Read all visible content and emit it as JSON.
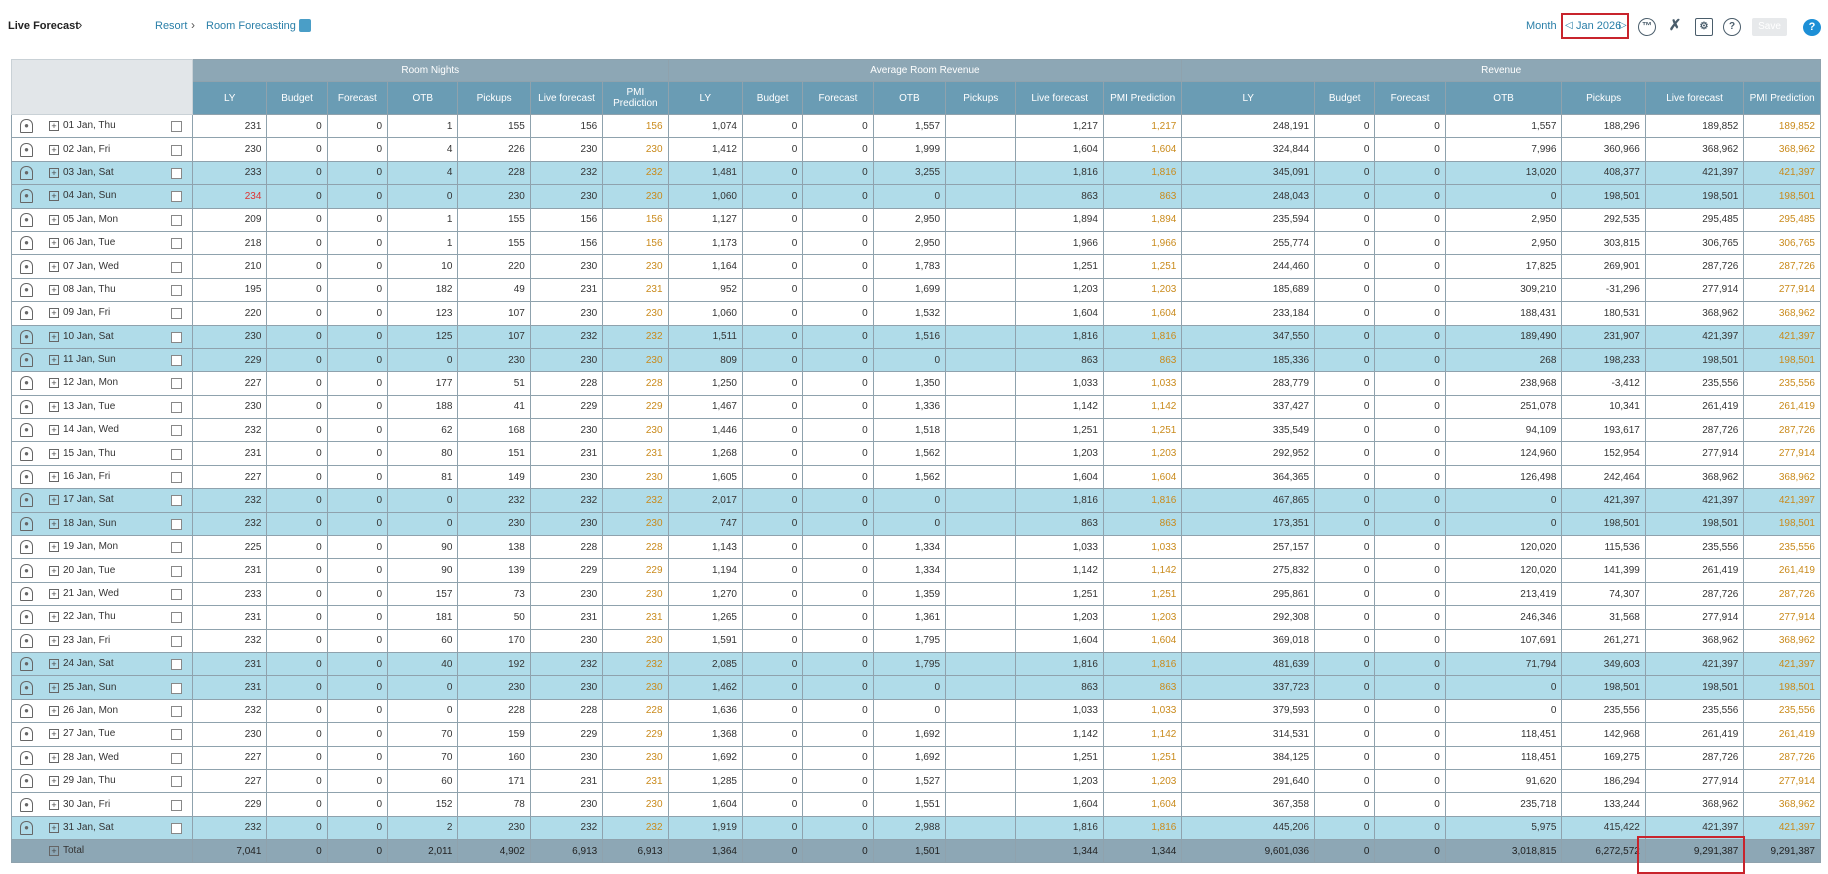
{
  "topbar": {
    "title": "Live Forecast",
    "breadcrumb": [
      "Resort",
      "Room Forecasting"
    ],
    "month_label": "Month",
    "month_value": "Jan 2026",
    "save_label": "Save"
  },
  "groups": [
    "Room Nights",
    "Average Room Revenue",
    "Revenue"
  ],
  "rn_cols": [
    "LY",
    "Budget",
    "Forecast",
    "OTB",
    "Pickups",
    "Live forecast",
    "PMI Prediction"
  ],
  "arr_cols": [
    "LY",
    "Budget",
    "Forecast",
    "OTB",
    "Pickups",
    "Live forecast",
    "PMI Prediction"
  ],
  "rev_cols": [
    "LY",
    "Budget",
    "Forecast",
    "OTB",
    "Pickups",
    "Live forecast",
    "PMI Prediction"
  ],
  "rows": [
    {
      "date": "01 Jan, Thu",
      "weekend": false,
      "rn": [
        "231",
        "0",
        "0",
        "1",
        "155",
        "156",
        "156"
      ],
      "arr": [
        "1,074",
        "0",
        "0",
        "1,557",
        "",
        "1,217",
        "1,217"
      ],
      "rev": [
        "248,191",
        "0",
        "0",
        "1,557",
        "188,296",
        "189,852",
        "189,852"
      ]
    },
    {
      "date": "02 Jan, Fri",
      "weekend": false,
      "rn": [
        "230",
        "0",
        "0",
        "4",
        "226",
        "230",
        "230"
      ],
      "arr": [
        "1,412",
        "0",
        "0",
        "1,999",
        "",
        "1,604",
        "1,604"
      ],
      "rev": [
        "324,844",
        "0",
        "0",
        "7,996",
        "360,966",
        "368,962",
        "368,962"
      ]
    },
    {
      "date": "03 Jan, Sat",
      "weekend": true,
      "rn": [
        "233",
        "0",
        "0",
        "4",
        "228",
        "232",
        "232"
      ],
      "arr": [
        "1,481",
        "0",
        "0",
        "3,255",
        "",
        "1,816",
        "1,816"
      ],
      "rev": [
        "345,091",
        "0",
        "0",
        "13,020",
        "408,377",
        "421,397",
        "421,397"
      ]
    },
    {
      "date": "04 Jan, Sun",
      "weekend": true,
      "red": true,
      "rn": [
        "234",
        "0",
        "0",
        "0",
        "230",
        "230",
        "230"
      ],
      "arr": [
        "1,060",
        "0",
        "0",
        "0",
        "",
        "863",
        "863"
      ],
      "rev": [
        "248,043",
        "0",
        "0",
        "0",
        "198,501",
        "198,501",
        "198,501"
      ]
    },
    {
      "date": "05 Jan, Mon",
      "weekend": false,
      "rn": [
        "209",
        "0",
        "0",
        "1",
        "155",
        "156",
        "156"
      ],
      "arr": [
        "1,127",
        "0",
        "0",
        "2,950",
        "",
        "1,894",
        "1,894"
      ],
      "rev": [
        "235,594",
        "0",
        "0",
        "2,950",
        "292,535",
        "295,485",
        "295,485"
      ]
    },
    {
      "date": "06 Jan, Tue",
      "weekend": false,
      "rn": [
        "218",
        "0",
        "0",
        "1",
        "155",
        "156",
        "156"
      ],
      "arr": [
        "1,173",
        "0",
        "0",
        "2,950",
        "",
        "1,966",
        "1,966"
      ],
      "rev": [
        "255,774",
        "0",
        "0",
        "2,950",
        "303,815",
        "306,765",
        "306,765"
      ]
    },
    {
      "date": "07 Jan, Wed",
      "weekend": false,
      "rn": [
        "210",
        "0",
        "0",
        "10",
        "220",
        "230",
        "230"
      ],
      "arr": [
        "1,164",
        "0",
        "0",
        "1,783",
        "",
        "1,251",
        "1,251"
      ],
      "rev": [
        "244,460",
        "0",
        "0",
        "17,825",
        "269,901",
        "287,726",
        "287,726"
      ]
    },
    {
      "date": "08 Jan, Thu",
      "weekend": false,
      "rn": [
        "195",
        "0",
        "0",
        "182",
        "49",
        "231",
        "231"
      ],
      "arr": [
        "952",
        "0",
        "0",
        "1,699",
        "",
        "1,203",
        "1,203"
      ],
      "rev": [
        "185,689",
        "0",
        "0",
        "309,210",
        "-31,296",
        "277,914",
        "277,914"
      ]
    },
    {
      "date": "09 Jan, Fri",
      "weekend": false,
      "rn": [
        "220",
        "0",
        "0",
        "123",
        "107",
        "230",
        "230"
      ],
      "arr": [
        "1,060",
        "0",
        "0",
        "1,532",
        "",
        "1,604",
        "1,604"
      ],
      "rev": [
        "233,184",
        "0",
        "0",
        "188,431",
        "180,531",
        "368,962",
        "368,962"
      ]
    },
    {
      "date": "10 Jan, Sat",
      "weekend": true,
      "rn": [
        "230",
        "0",
        "0",
        "125",
        "107",
        "232",
        "232"
      ],
      "arr": [
        "1,511",
        "0",
        "0",
        "1,516",
        "",
        "1,816",
        "1,816"
      ],
      "rev": [
        "347,550",
        "0",
        "0",
        "189,490",
        "231,907",
        "421,397",
        "421,397"
      ]
    },
    {
      "date": "11 Jan, Sun",
      "weekend": true,
      "rn": [
        "229",
        "0",
        "0",
        "0",
        "230",
        "230",
        "230"
      ],
      "arr": [
        "809",
        "0",
        "0",
        "0",
        "",
        "863",
        "863"
      ],
      "rev": [
        "185,336",
        "0",
        "0",
        "268",
        "198,233",
        "198,501",
        "198,501"
      ]
    },
    {
      "date": "12 Jan, Mon",
      "weekend": false,
      "rn": [
        "227",
        "0",
        "0",
        "177",
        "51",
        "228",
        "228"
      ],
      "arr": [
        "1,250",
        "0",
        "0",
        "1,350",
        "",
        "1,033",
        "1,033"
      ],
      "rev": [
        "283,779",
        "0",
        "0",
        "238,968",
        "-3,412",
        "235,556",
        "235,556"
      ]
    },
    {
      "date": "13 Jan, Tue",
      "weekend": false,
      "rn": [
        "230",
        "0",
        "0",
        "188",
        "41",
        "229",
        "229"
      ],
      "arr": [
        "1,467",
        "0",
        "0",
        "1,336",
        "",
        "1,142",
        "1,142"
      ],
      "rev": [
        "337,427",
        "0",
        "0",
        "251,078",
        "10,341",
        "261,419",
        "261,419"
      ]
    },
    {
      "date": "14 Jan, Wed",
      "weekend": false,
      "rn": [
        "232",
        "0",
        "0",
        "62",
        "168",
        "230",
        "230"
      ],
      "arr": [
        "1,446",
        "0",
        "0",
        "1,518",
        "",
        "1,251",
        "1,251"
      ],
      "rev": [
        "335,549",
        "0",
        "0",
        "94,109",
        "193,617",
        "287,726",
        "287,726"
      ]
    },
    {
      "date": "15 Jan, Thu",
      "weekend": false,
      "rn": [
        "231",
        "0",
        "0",
        "80",
        "151",
        "231",
        "231"
      ],
      "arr": [
        "1,268",
        "0",
        "0",
        "1,562",
        "",
        "1,203",
        "1,203"
      ],
      "rev": [
        "292,952",
        "0",
        "0",
        "124,960",
        "152,954",
        "277,914",
        "277,914"
      ]
    },
    {
      "date": "16 Jan, Fri",
      "weekend": false,
      "rn": [
        "227",
        "0",
        "0",
        "81",
        "149",
        "230",
        "230"
      ],
      "arr": [
        "1,605",
        "0",
        "0",
        "1,562",
        "",
        "1,604",
        "1,604"
      ],
      "rev": [
        "364,365",
        "0",
        "0",
        "126,498",
        "242,464",
        "368,962",
        "368,962"
      ]
    },
    {
      "date": "17 Jan, Sat",
      "weekend": true,
      "rn": [
        "232",
        "0",
        "0",
        "0",
        "232",
        "232",
        "232"
      ],
      "arr": [
        "2,017",
        "0",
        "0",
        "0",
        "",
        "1,816",
        "1,816"
      ],
      "rev": [
        "467,865",
        "0",
        "0",
        "0",
        "421,397",
        "421,397",
        "421,397"
      ]
    },
    {
      "date": "18 Jan, Sun",
      "weekend": true,
      "rn": [
        "232",
        "0",
        "0",
        "0",
        "230",
        "230",
        "230"
      ],
      "arr": [
        "747",
        "0",
        "0",
        "0",
        "",
        "863",
        "863"
      ],
      "rev": [
        "173,351",
        "0",
        "0",
        "0",
        "198,501",
        "198,501",
        "198,501"
      ]
    },
    {
      "date": "19 Jan, Mon",
      "weekend": false,
      "rn": [
        "225",
        "0",
        "0",
        "90",
        "138",
        "228",
        "228"
      ],
      "arr": [
        "1,143",
        "0",
        "0",
        "1,334",
        "",
        "1,033",
        "1,033"
      ],
      "rev": [
        "257,157",
        "0",
        "0",
        "120,020",
        "115,536",
        "235,556",
        "235,556"
      ]
    },
    {
      "date": "20 Jan, Tue",
      "weekend": false,
      "rn": [
        "231",
        "0",
        "0",
        "90",
        "139",
        "229",
        "229"
      ],
      "arr": [
        "1,194",
        "0",
        "0",
        "1,334",
        "",
        "1,142",
        "1,142"
      ],
      "rev": [
        "275,832",
        "0",
        "0",
        "120,020",
        "141,399",
        "261,419",
        "261,419"
      ]
    },
    {
      "date": "21 Jan, Wed",
      "weekend": false,
      "rn": [
        "233",
        "0",
        "0",
        "157",
        "73",
        "230",
        "230"
      ],
      "arr": [
        "1,270",
        "0",
        "0",
        "1,359",
        "",
        "1,251",
        "1,251"
      ],
      "rev": [
        "295,861",
        "0",
        "0",
        "213,419",
        "74,307",
        "287,726",
        "287,726"
      ]
    },
    {
      "date": "22 Jan, Thu",
      "weekend": false,
      "rn": [
        "231",
        "0",
        "0",
        "181",
        "50",
        "231",
        "231"
      ],
      "arr": [
        "1,265",
        "0",
        "0",
        "1,361",
        "",
        "1,203",
        "1,203"
      ],
      "rev": [
        "292,308",
        "0",
        "0",
        "246,346",
        "31,568",
        "277,914",
        "277,914"
      ]
    },
    {
      "date": "23 Jan, Fri",
      "weekend": false,
      "rn": [
        "232",
        "0",
        "0",
        "60",
        "170",
        "230",
        "230"
      ],
      "arr": [
        "1,591",
        "0",
        "0",
        "1,795",
        "",
        "1,604",
        "1,604"
      ],
      "rev": [
        "369,018",
        "0",
        "0",
        "107,691",
        "261,271",
        "368,962",
        "368,962"
      ]
    },
    {
      "date": "24 Jan, Sat",
      "weekend": true,
      "rn": [
        "231",
        "0",
        "0",
        "40",
        "192",
        "232",
        "232"
      ],
      "arr": [
        "2,085",
        "0",
        "0",
        "1,795",
        "",
        "1,816",
        "1,816"
      ],
      "rev": [
        "481,639",
        "0",
        "0",
        "71,794",
        "349,603",
        "421,397",
        "421,397"
      ]
    },
    {
      "date": "25 Jan, Sun",
      "weekend": true,
      "rn": [
        "231",
        "0",
        "0",
        "0",
        "230",
        "230",
        "230"
      ],
      "arr": [
        "1,462",
        "0",
        "0",
        "0",
        "",
        "863",
        "863"
      ],
      "rev": [
        "337,723",
        "0",
        "0",
        "0",
        "198,501",
        "198,501",
        "198,501"
      ]
    },
    {
      "date": "26 Jan, Mon",
      "weekend": false,
      "rn": [
        "232",
        "0",
        "0",
        "0",
        "228",
        "228",
        "228"
      ],
      "arr": [
        "1,636",
        "0",
        "0",
        "0",
        "",
        "1,033",
        "1,033"
      ],
      "rev": [
        "379,593",
        "0",
        "0",
        "0",
        "235,556",
        "235,556",
        "235,556"
      ]
    },
    {
      "date": "27 Jan, Tue",
      "weekend": false,
      "rn": [
        "230",
        "0",
        "0",
        "70",
        "159",
        "229",
        "229"
      ],
      "arr": [
        "1,368",
        "0",
        "0",
        "1,692",
        "",
        "1,142",
        "1,142"
      ],
      "rev": [
        "314,531",
        "0",
        "0",
        "118,451",
        "142,968",
        "261,419",
        "261,419"
      ]
    },
    {
      "date": "28 Jan, Wed",
      "weekend": false,
      "rn": [
        "227",
        "0",
        "0",
        "70",
        "160",
        "230",
        "230"
      ],
      "arr": [
        "1,692",
        "0",
        "0",
        "1,692",
        "",
        "1,251",
        "1,251"
      ],
      "rev": [
        "384,125",
        "0",
        "0",
        "118,451",
        "169,275",
        "287,726",
        "287,726"
      ]
    },
    {
      "date": "29 Jan, Thu",
      "weekend": false,
      "rn": [
        "227",
        "0",
        "0",
        "60",
        "171",
        "231",
        "231"
      ],
      "arr": [
        "1,285",
        "0",
        "0",
        "1,527",
        "",
        "1,203",
        "1,203"
      ],
      "rev": [
        "291,640",
        "0",
        "0",
        "91,620",
        "186,294",
        "277,914",
        "277,914"
      ]
    },
    {
      "date": "30 Jan, Fri",
      "weekend": false,
      "rn": [
        "229",
        "0",
        "0",
        "152",
        "78",
        "230",
        "230"
      ],
      "arr": [
        "1,604",
        "0",
        "0",
        "1,551",
        "",
        "1,604",
        "1,604"
      ],
      "rev": [
        "367,358",
        "0",
        "0",
        "235,718",
        "133,244",
        "368,962",
        "368,962"
      ]
    },
    {
      "date": "31 Jan, Sat",
      "weekend": true,
      "rn": [
        "232",
        "0",
        "0",
        "2",
        "230",
        "232",
        "232"
      ],
      "arr": [
        "1,919",
        "0",
        "0",
        "2,988",
        "",
        "1,816",
        "1,816"
      ],
      "rev": [
        "445,206",
        "0",
        "0",
        "5,975",
        "415,422",
        "421,397",
        "421,397"
      ]
    }
  ],
  "total": {
    "label": "Total",
    "rn": [
      "7,041",
      "0",
      "0",
      "2,011",
      "4,902",
      "6,913",
      "6,913"
    ],
    "arr": [
      "1,364",
      "0",
      "0",
      "1,501",
      "",
      "1,344",
      "1,344"
    ],
    "rev": [
      "9,601,036",
      "0",
      "0",
      "3,018,815",
      "6,272,572",
      "9,291,387",
      "9,291,387"
    ]
  },
  "colors": {
    "weekend_row": "#b0dce9",
    "header": "#6a9cb4",
    "pmi_text": "#c98a1b",
    "highlight": "#c8242c"
  }
}
